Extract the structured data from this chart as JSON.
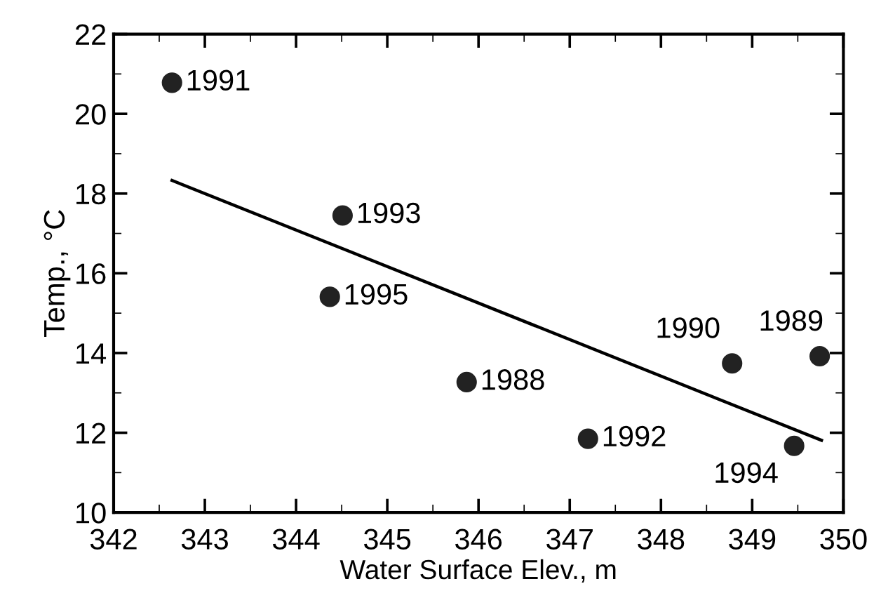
{
  "chart_data": {
    "type": "scatter",
    "xlabel": "Water Surface Elev., m",
    "ylabel": "Temp., °C",
    "xlim": [
      342,
      350
    ],
    "xticks": [
      342,
      343,
      344,
      345,
      346,
      347,
      348,
      349,
      350
    ],
    "ylim": [
      10,
      22
    ],
    "yticks": [
      10,
      12,
      14,
      16,
      18,
      20,
      22
    ],
    "grid": false,
    "legend": false,
    "series": [
      {
        "marker": "circle",
        "color": "#222222",
        "x": [
          342.64,
          344.51,
          344.37,
          345.87,
          347.2,
          348.78,
          349.74,
          349.46
        ],
        "values": [
          20.78,
          17.45,
          15.41,
          13.27,
          11.85,
          13.74,
          13.92,
          11.67
        ]
      },
      {
        "type": "line",
        "color": "#000000",
        "x": [
          342.64,
          349.76
        ],
        "values": [
          18.33,
          11.81
        ],
        "marker": "none",
        "line_style": "solid"
      }
    ],
    "annotations": [
      {
        "text": "1991",
        "x": 342.64,
        "y": 20.78
      },
      {
        "text": "1993",
        "x": 344.51,
        "y": 17.45
      },
      {
        "text": "1995",
        "x": 344.37,
        "y": 15.41
      },
      {
        "text": "1988",
        "x": 345.87,
        "y": 13.27
      },
      {
        "text": "1992",
        "x": 347.2,
        "y": 11.85
      },
      {
        "text": "1990",
        "x": 348.78,
        "y": 13.74
      },
      {
        "text": "1989",
        "x": 349.74,
        "y": 13.92
      },
      {
        "text": "1994",
        "x": 349.46,
        "y": 11.67
      }
    ]
  }
}
